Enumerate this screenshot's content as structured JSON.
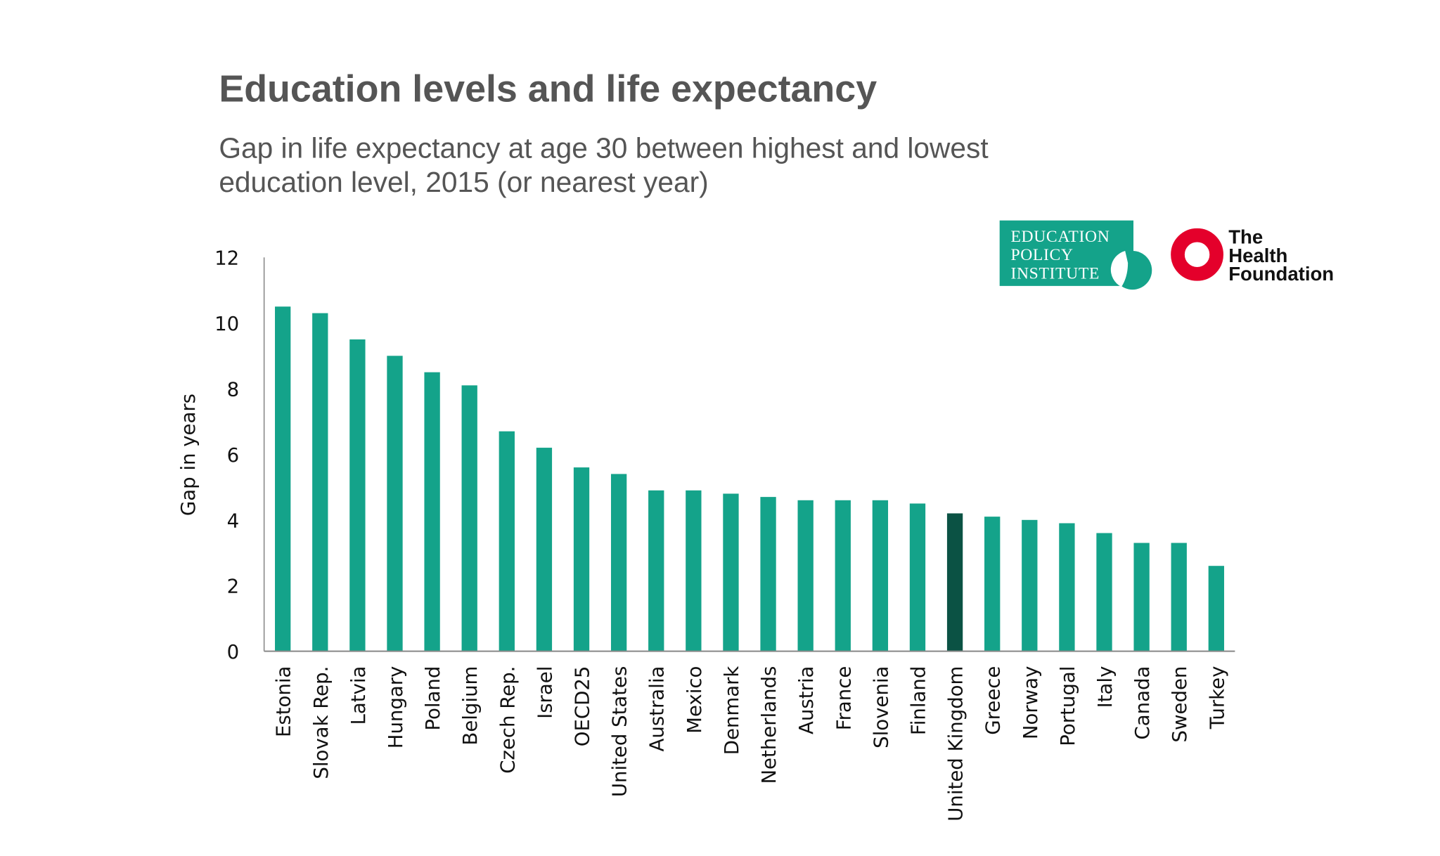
{
  "colors": {
    "bar": "#14a38a",
    "highlight": "#0b5244",
    "title": "#555555",
    "hf_red": "#e4002b"
  },
  "logos": {
    "epi": [
      "EDUCATION",
      "POLICY",
      "INSTITUTE"
    ],
    "health_foundation": [
      "The",
      "Health",
      "Foundation"
    ]
  },
  "chart_data": {
    "type": "bar",
    "title": "Education levels and life expectancy",
    "subtitle": [
      "Gap in life expectancy at age 30 between highest and lowest",
      "education level, 2015 (or nearest year)"
    ],
    "xlabel": "",
    "ylabel": "Gap in years",
    "ylim": [
      0,
      12
    ],
    "yticks": [
      0,
      2,
      4,
      6,
      8,
      10,
      12
    ],
    "grid": false,
    "highlight": "United Kingdom",
    "categories": [
      "Estonia",
      "Slovak Rep.",
      "Latvia",
      "Hungary",
      "Poland",
      "Belgium",
      "Czech Rep.",
      "Israel",
      "OECD25",
      "United States",
      "Australia",
      "Mexico",
      "Denmark",
      "Netherlands",
      "Austria",
      "France",
      "Slovenia",
      "Finland",
      "United Kingdom",
      "Greece",
      "Norway",
      "Portugal",
      "Italy",
      "Canada",
      "Sweden",
      "Turkey"
    ],
    "values": [
      10.5,
      10.3,
      9.5,
      9.0,
      8.5,
      8.1,
      6.7,
      6.2,
      5.6,
      5.4,
      4.9,
      4.9,
      4.8,
      4.7,
      4.6,
      4.6,
      4.6,
      4.5,
      4.2,
      4.1,
      4.0,
      3.9,
      3.6,
      3.3,
      3.3,
      2.6
    ]
  }
}
